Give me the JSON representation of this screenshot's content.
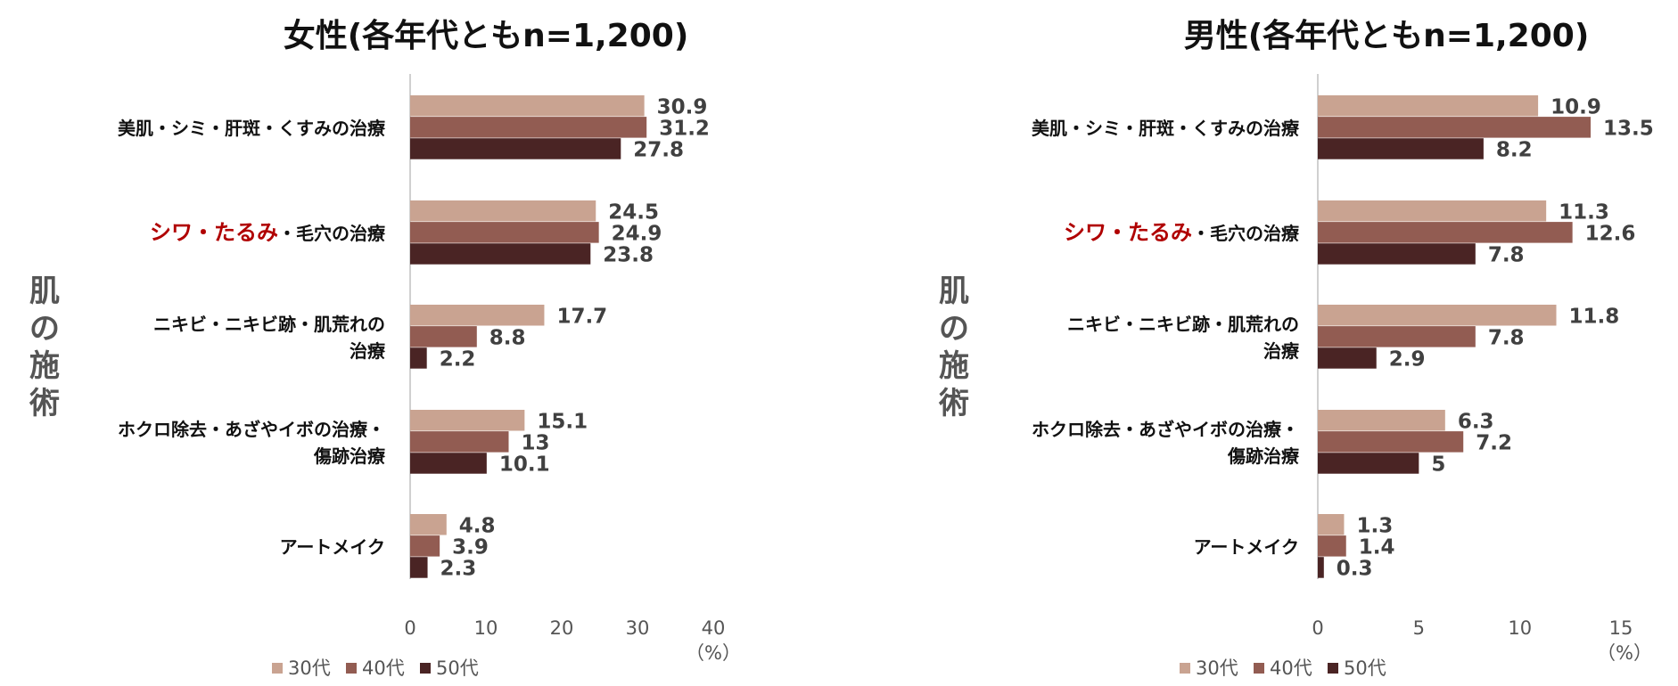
{
  "colors": {
    "s30": "#c9a391",
    "s40": "#925c52",
    "s50": "#4a2424",
    "highlight": "#b00000"
  },
  "legend": [
    "30代",
    "40代",
    "50代"
  ],
  "side_label": [
    "肌",
    "の",
    "施",
    "術"
  ],
  "unit": "（%）",
  "categories": [
    {
      "lines": [
        [
          {
            "t": "美肌・シミ・肝斑・くすみの治療",
            "hl": false
          }
        ]
      ]
    },
    {
      "lines": [
        [
          {
            "t": "シワ・たるみ",
            "hl": true
          },
          {
            "t": "・毛穴の治療",
            "hl": false
          }
        ]
      ]
    },
    {
      "lines": [
        [
          {
            "t": "ニキビ・ニキビ跡・肌荒れの",
            "hl": false
          }
        ],
        [
          {
            "t": "治療",
            "hl": false
          }
        ]
      ]
    },
    {
      "lines": [
        [
          {
            "t": "ホクロ除去・あざやイボの治療・",
            "hl": false
          }
        ],
        [
          {
            "t": "傷跡治療",
            "hl": false
          }
        ]
      ]
    },
    {
      "lines": [
        [
          {
            "t": "アートメイク",
            "hl": false
          }
        ]
      ]
    }
  ],
  "chart_data": [
    {
      "type": "bar",
      "orientation": "horizontal",
      "title": "女性(各年代ともn=1,200)",
      "categories": [
        "美肌・シミ・肝斑・くすみの治療",
        "シワ・たるみ・毛穴の治療",
        "ニキビ・ニキビ跡・肌荒れの治療",
        "ホクロ除去・あざやイボの治療・傷跡治療",
        "アートメイク"
      ],
      "series": [
        {
          "name": "30代",
          "values": [
            30.9,
            24.5,
            17.7,
            15.1,
            4.8
          ]
        },
        {
          "name": "40代",
          "values": [
            31.2,
            24.9,
            8.8,
            13,
            3.9
          ]
        },
        {
          "name": "50代",
          "values": [
            27.8,
            23.8,
            2.2,
            10.1,
            2.3
          ]
        }
      ],
      "xlim": [
        0,
        40
      ],
      "xticks": [
        0,
        10,
        20,
        30,
        40
      ],
      "legend_position": "bottom-left",
      "grid": false
    },
    {
      "type": "bar",
      "orientation": "horizontal",
      "title": "男性(各年代ともn=1,200)",
      "categories": [
        "美肌・シミ・肝斑・くすみの治療",
        "シワ・たるみ・毛穴の治療",
        "ニキビ・ニキビ跡・肌荒れの治療",
        "ホクロ除去・あざやイボの治療・傷跡治療",
        "アートメイク"
      ],
      "series": [
        {
          "name": "30代",
          "values": [
            10.9,
            11.3,
            11.8,
            6.3,
            1.3
          ]
        },
        {
          "name": "40代",
          "values": [
            13.5,
            12.6,
            7.8,
            7.2,
            1.4
          ]
        },
        {
          "name": "50代",
          "values": [
            8.2,
            7.8,
            2.9,
            5,
            0.3
          ]
        }
      ],
      "xlim": [
        0,
        15
      ],
      "xticks": [
        0,
        5,
        10,
        15
      ],
      "legend_position": "bottom-left",
      "grid": false
    }
  ]
}
